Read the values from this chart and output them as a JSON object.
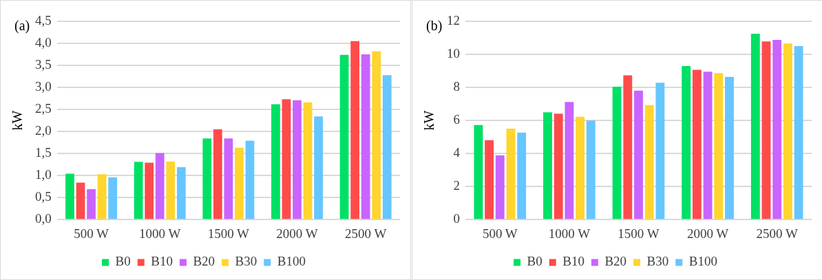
{
  "chart_data": [
    {
      "type": "bar",
      "annotations": [
        "(a)"
      ],
      "ylabel": "kW",
      "categories": [
        "500 W",
        "1000 W",
        "1500 W",
        "2000 W",
        "2500 W"
      ],
      "series": [
        {
          "name": "B0",
          "color": "#00e065",
          "values": [
            1.04,
            1.31,
            1.84,
            2.62,
            3.74
          ]
        },
        {
          "name": "B10",
          "color": "#ff4b4b",
          "values": [
            0.84,
            1.29,
            2.05,
            2.73,
            4.05
          ]
        },
        {
          "name": "B20",
          "color": "#c964ff",
          "values": [
            0.69,
            1.51,
            1.84,
            2.71,
            3.75
          ]
        },
        {
          "name": "B30",
          "color": "#ffd52e",
          "values": [
            1.03,
            1.32,
            1.63,
            2.66,
            3.82
          ]
        },
        {
          "name": "B100",
          "color": "#66c6ff",
          "values": [
            0.96,
            1.19,
            1.79,
            2.34,
            3.28
          ]
        }
      ],
      "ylim": [
        0,
        4.5
      ],
      "yticks": [
        {
          "value": 0,
          "label": "0,0"
        },
        {
          "value": 0.5,
          "label": "0,5"
        },
        {
          "value": 1,
          "label": "1,0"
        },
        {
          "value": 1.5,
          "label": "1,5"
        },
        {
          "value": 2,
          "label": "2,0"
        },
        {
          "value": 2.5,
          "label": "2,5"
        },
        {
          "value": 3,
          "label": "3,0"
        },
        {
          "value": 3.5,
          "label": "3,5"
        },
        {
          "value": 4,
          "label": "4,0"
        },
        {
          "value": 4.5,
          "label": "4,5"
        }
      ],
      "grid": "y",
      "legend": "bottom"
    },
    {
      "type": "bar",
      "annotations": [
        "(b)"
      ],
      "ylabel": "kW",
      "categories": [
        "500 W",
        "1000 W",
        "1500 W",
        "2000 W",
        "2500 W"
      ],
      "series": [
        {
          "name": "B0",
          "color": "#00e065",
          "values": [
            5.72,
            6.49,
            8.04,
            9.29,
            11.25
          ]
        },
        {
          "name": "B10",
          "color": "#ff4b4b",
          "values": [
            4.81,
            6.41,
            8.73,
            9.06,
            10.78
          ]
        },
        {
          "name": "B20",
          "color": "#c964ff",
          "values": [
            3.89,
            7.12,
            7.81,
            8.95,
            10.88
          ]
        },
        {
          "name": "B30",
          "color": "#ffd52e",
          "values": [
            5.5,
            6.22,
            6.93,
            8.87,
            10.66
          ]
        },
        {
          "name": "B100",
          "color": "#66c6ff",
          "values": [
            5.27,
            5.99,
            8.28,
            8.64,
            10.5
          ]
        }
      ],
      "ylim": [
        0,
        12
      ],
      "yticks": [
        0,
        2,
        4,
        6,
        8,
        10,
        12
      ],
      "grid": "y",
      "legend": "bottom"
    }
  ]
}
